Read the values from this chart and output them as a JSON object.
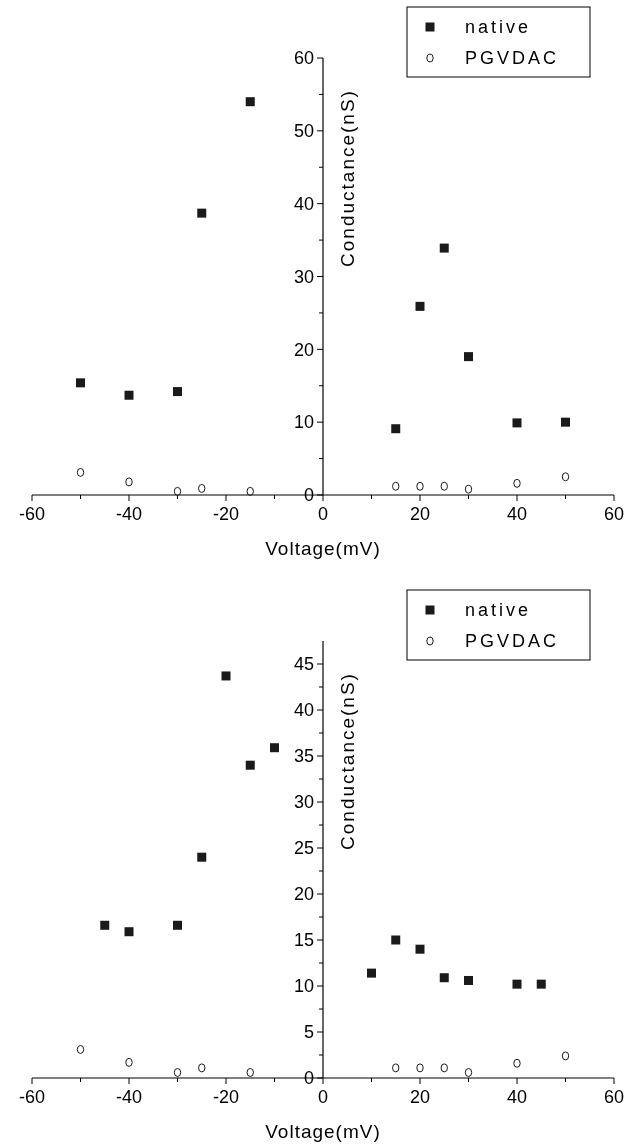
{
  "chart_data": [
    {
      "type": "scatter",
      "xlabel": "Voltage(mV)",
      "ylabel": "Conductance(nS)",
      "xlim": [
        -60,
        60
      ],
      "ylim": [
        0,
        60
      ],
      "xticks": [
        -60,
        {
          "value": -50,
          "label": null
        },
        -40,
        {
          "value": -30,
          "label": null
        },
        -20,
        {
          "value": -10,
          "label": null
        },
        0,
        {
          "value": 10,
          "label": null
        },
        20,
        {
          "value": 30,
          "label": null
        },
        40,
        {
          "value": 50,
          "label": null
        },
        60
      ],
      "yticks": [
        0,
        {
          "value": 5,
          "label": null
        },
        10,
        {
          "value": 15,
          "label": null
        },
        20,
        {
          "value": 25,
          "label": null
        },
        30,
        {
          "value": 35,
          "label": null
        },
        40,
        {
          "value": 45,
          "label": null
        },
        50,
        {
          "value": 55,
          "label": null
        },
        60
      ],
      "legend": "top right",
      "grid": false,
      "series": [
        {
          "name": "native",
          "color": "#1a1a1a",
          "marker": "square",
          "x": [
            -50,
            -40,
            -30,
            -25,
            -15,
            15,
            20,
            25,
            30,
            40,
            50
          ],
          "values": [
            15.4,
            13.7,
            14.2,
            38.7,
            54.0,
            9.1,
            25.9,
            33.9,
            19.0,
            9.9,
            10.0
          ]
        },
        {
          "name": "PGVDAC",
          "color": "#1a1a1a",
          "marker": "circle",
          "x": [
            -50,
            -40,
            -30,
            -25,
            -15,
            15,
            20,
            25,
            30,
            40,
            50
          ],
          "values": [
            3.1,
            1.8,
            0.5,
            0.9,
            0.5,
            1.2,
            1.2,
            1.2,
            0.8,
            1.6,
            2.5
          ]
        }
      ]
    },
    {
      "type": "scatter",
      "xlabel": "Voltage(mV)",
      "ylabel": "Conductance(nS)",
      "xlim": [
        -60,
        60
      ],
      "ylim": [
        0,
        47.5
      ],
      "xticks": [
        -60,
        {
          "value": -50,
          "label": null
        },
        -40,
        {
          "value": -30,
          "label": null
        },
        -20,
        {
          "value": -10,
          "label": null
        },
        0,
        {
          "value": 10,
          "label": null
        },
        20,
        {
          "value": 30,
          "label": null
        },
        40,
        {
          "value": 50,
          "label": null
        },
        60
      ],
      "yticks": [
        0,
        {
          "value": 2.5,
          "label": null
        },
        5,
        {
          "value": 7.5,
          "label": null
        },
        10,
        {
          "value": 12.5,
          "label": null
        },
        15,
        {
          "value": 17.5,
          "label": null
        },
        20,
        {
          "value": 22.5,
          "label": null
        },
        25,
        {
          "value": 27.5,
          "label": null
        },
        30,
        {
          "value": 32.5,
          "label": null
        },
        35,
        {
          "value": 37.5,
          "label": null
        },
        40,
        {
          "value": 42.5,
          "label": null
        },
        45
      ],
      "legend": "top right",
      "grid": false,
      "series": [
        {
          "name": "native",
          "color": "#1a1a1a",
          "marker": "square",
          "x": [
            -45,
            -40,
            -30,
            -25,
            -20,
            -15,
            -10,
            10,
            15,
            20,
            25,
            30,
            40,
            45
          ],
          "values": [
            16.6,
            15.9,
            16.6,
            24.0,
            43.7,
            34.0,
            35.9,
            11.4,
            15.0,
            14.0,
            10.9,
            10.6,
            10.2,
            10.2
          ]
        },
        {
          "name": "PGVDAC",
          "color": "#1a1a1a",
          "marker": "circle",
          "x": [
            -50,
            -40,
            -30,
            -25,
            -15,
            15,
            20,
            25,
            30,
            40,
            50
          ],
          "values": [
            3.1,
            1.7,
            0.6,
            1.1,
            0.6,
            1.1,
            1.1,
            1.1,
            0.6,
            1.6,
            2.4
          ]
        }
      ]
    }
  ]
}
